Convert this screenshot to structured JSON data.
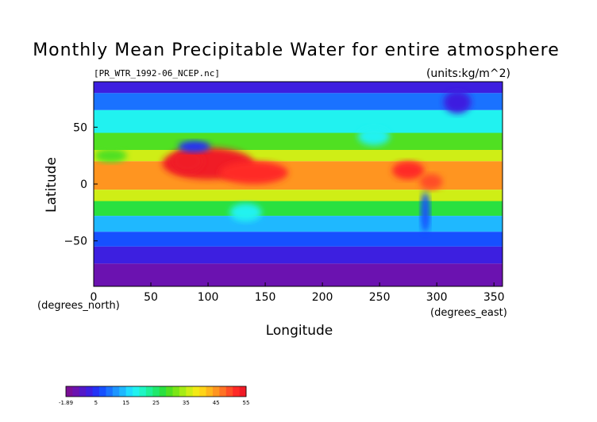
{
  "chart_data": {
    "type": "heatmap",
    "title": "Monthly Mean Precipitable Water for entire atmosphere",
    "subtitle_left": "[PR_WTR_1992-06_NCEP.nc]",
    "subtitle_right": "(units:kg/m^2)",
    "xlabel": "Longitude",
    "ylabel": "Latitude",
    "x_unit_label": "(degrees_east)",
    "y_unit_label": "(degrees_north)",
    "xlim": [
      0,
      357.5
    ],
    "ylim": [
      -90,
      90
    ],
    "x_ticks": [
      0,
      50,
      100,
      150,
      200,
      250,
      300,
      350
    ],
    "y_ticks": [
      -50,
      0,
      50
    ],
    "colorbar": {
      "min": -1.89,
      "max": 55,
      "tick_labels": [
        "-1.89",
        "5",
        "15",
        "25",
        "35",
        "45",
        "55"
      ],
      "colors": [
        "#7a0f96",
        "#6b12b0",
        "#5318c8",
        "#3d1fe0",
        "#2432f5",
        "#1650ff",
        "#1a72ff",
        "#1e95ff",
        "#1fb8ff",
        "#20dcff",
        "#21f2f0",
        "#1ff5c4",
        "#1df098",
        "#1fe86c",
        "#2ae040",
        "#50e022",
        "#7ae617",
        "#a6ec16",
        "#cfee16",
        "#f2ea16",
        "#ffd418",
        "#ffb61c",
        "#ff9520",
        "#ff7224",
        "#ff4d26",
        "#ff2a26",
        "#f01a26"
      ]
    },
    "map_bands": [
      {
        "lat_top": 90,
        "lat_bottom": 80,
        "value": 5
      },
      {
        "lat_top": 80,
        "lat_bottom": 65,
        "value": 12
      },
      {
        "lat_top": 65,
        "lat_bottom": 45,
        "value": 20
      },
      {
        "lat_top": 45,
        "lat_bottom": 30,
        "value": 30
      },
      {
        "lat_top": 30,
        "lat_bottom": 20,
        "value": 38
      },
      {
        "lat_top": 20,
        "lat_bottom": -5,
        "value": 45
      },
      {
        "lat_top": -5,
        "lat_bottom": -15,
        "value": 38
      },
      {
        "lat_top": -15,
        "lat_bottom": -28,
        "value": 28
      },
      {
        "lat_top": -28,
        "lat_bottom": -42,
        "value": 17
      },
      {
        "lat_top": -42,
        "lat_bottom": -55,
        "value": 10
      },
      {
        "lat_top": -55,
        "lat_bottom": -70,
        "value": 6
      },
      {
        "lat_top": -70,
        "lat_bottom": -90,
        "value": 1
      }
    ],
    "map_features": [
      {
        "name": "asian-monsoon",
        "lon": 100,
        "lat": 18,
        "rx": 40,
        "ry": 14,
        "value": 55
      },
      {
        "name": "indian-subcontinent",
        "lon": 82,
        "lat": 20,
        "rx": 14,
        "ry": 10,
        "value": 55
      },
      {
        "name": "western-pacific-warm-pool",
        "lon": 140,
        "lat": 10,
        "rx": 30,
        "ry": 10,
        "value": 52
      },
      {
        "name": "central-america",
        "lon": 275,
        "lat": 12,
        "rx": 14,
        "ry": 8,
        "value": 52
      },
      {
        "name": "amazon-north",
        "lon": 295,
        "lat": 2,
        "rx": 10,
        "ry": 7,
        "value": 50
      },
      {
        "name": "tibet-plateau",
        "lon": 88,
        "lat": 33,
        "rx": 14,
        "ry": 5,
        "value": 8
      },
      {
        "name": "andes-dry",
        "lon": 290,
        "lat": -25,
        "rx": 4,
        "ry": 18,
        "value": 10
      },
      {
        "name": "sahara-dry",
        "lon": 15,
        "lat": 25,
        "rx": 14,
        "ry": 6,
        "value": 30
      },
      {
        "name": "australia-interior",
        "lon": 133,
        "lat": -25,
        "rx": 14,
        "ry": 8,
        "value": 20
      },
      {
        "name": "greenland",
        "lon": 318,
        "lat": 72,
        "rx": 12,
        "ry": 10,
        "value": 5
      },
      {
        "name": "north-america-west",
        "lon": 245,
        "lat": 42,
        "rx": 14,
        "ry": 8,
        "value": 20
      }
    ]
  }
}
